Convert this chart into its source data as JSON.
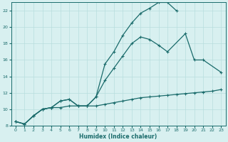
{
  "x": [
    0,
    1,
    2,
    3,
    4,
    5,
    6,
    7,
    8,
    9,
    10,
    11,
    12,
    13,
    14,
    15,
    16,
    17,
    18,
    19,
    20,
    21,
    22,
    23
  ],
  "y_max": [
    8.5,
    8.2,
    9.2,
    10.0,
    10.2,
    11.0,
    11.2,
    10.4,
    10.4,
    11.5,
    15.5,
    17.0,
    19.0,
    20.5,
    21.7,
    22.3,
    23.0,
    23.0,
    22.0,
    null,
    null,
    null,
    null,
    null
  ],
  "y_mid": [
    8.5,
    8.2,
    9.2,
    10.0,
    10.2,
    11.0,
    11.2,
    10.4,
    10.4,
    11.5,
    13.5,
    15.0,
    16.5,
    18.0,
    18.8,
    18.5,
    17.8,
    17.0,
    null,
    19.2,
    16.0,
    16.0,
    null,
    14.5
  ],
  "y_min": [
    8.5,
    8.2,
    9.2,
    10.0,
    10.2,
    10.2,
    10.4,
    10.4,
    10.4,
    10.4,
    10.6,
    10.8,
    11.0,
    11.2,
    11.4,
    11.5,
    11.6,
    11.7,
    11.8,
    11.9,
    12.0,
    12.1,
    12.2,
    12.4
  ],
  "line_color": "#1a6b6b",
  "bg_color": "#d8f0f0",
  "grid_color": "#b8dede",
  "xlabel": "Humidex (Indice chaleur)",
  "ylim": [
    8,
    23
  ],
  "xlim": [
    -0.5,
    23.5
  ],
  "yticks": [
    8,
    10,
    12,
    14,
    16,
    18,
    20,
    22
  ],
  "xticks": [
    0,
    1,
    2,
    3,
    4,
    5,
    6,
    7,
    8,
    9,
    10,
    11,
    12,
    13,
    14,
    15,
    16,
    17,
    18,
    19,
    20,
    21,
    22,
    23
  ]
}
